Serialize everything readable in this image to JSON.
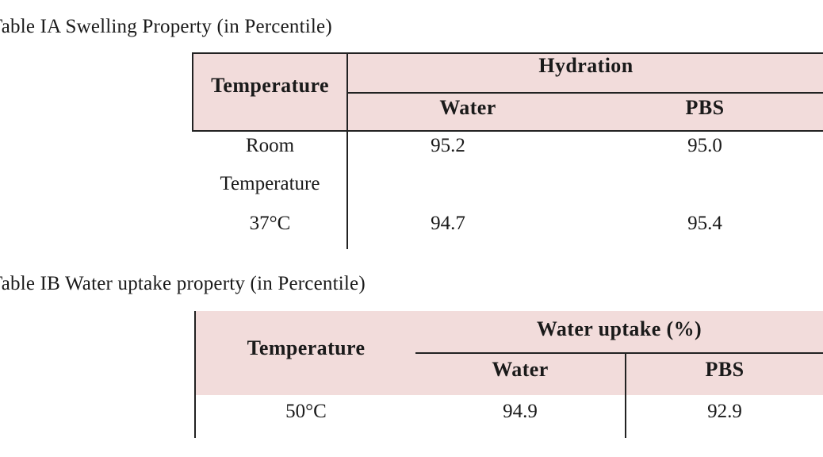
{
  "table_ia": {
    "caption": "Table IA  Swelling Property (in Percentile)",
    "header_temperature": "Temperature",
    "header_group": "Hydration",
    "header_water": "Water",
    "header_pbs": "PBS",
    "rows": [
      {
        "temperature_line1": "Room",
        "temperature_line2": "Temperature",
        "water": "95.2",
        "pbs": "95.0"
      },
      {
        "temperature": "37°C",
        "water": "94.7",
        "pbs": "95.4"
      }
    ]
  },
  "table_ib": {
    "caption": "Table IB  Water uptake property (in Percentile)",
    "header_temperature": "Temperature",
    "header_group": "Water uptake (%)",
    "header_water": "Water",
    "header_pbs": "PBS",
    "rows": [
      {
        "temperature": "50°C",
        "water": "94.9",
        "pbs": "92.9"
      }
    ]
  },
  "colors": {
    "header_fill": "#f2dcdb",
    "rule": "#222222"
  }
}
